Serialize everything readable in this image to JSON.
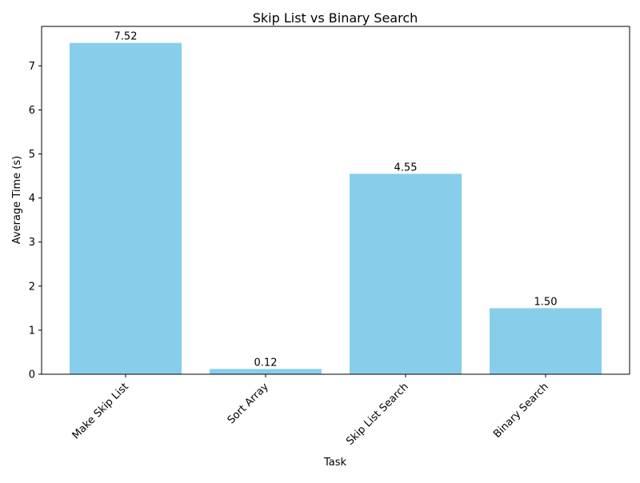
{
  "chart_data": {
    "type": "bar",
    "title": "Skip List vs Binary Search",
    "xlabel": "Task",
    "ylabel": "Average Time (s)",
    "categories": [
      "Make Skip List",
      "Sort Array",
      "Skip List Search",
      "Binary Search"
    ],
    "values": [
      7.52,
      0.12,
      4.55,
      1.5
    ],
    "value_labels": [
      "7.52",
      "0.12",
      "4.55",
      "1.50"
    ],
    "ylim": [
      0,
      7.896
    ],
    "yticks": [
      0,
      1,
      2,
      3,
      4,
      5,
      6,
      7
    ],
    "ytick_labels": [
      "0",
      "1",
      "2",
      "3",
      "4",
      "5",
      "6",
      "7"
    ],
    "bar_color": "#87CEEB",
    "grid": false,
    "xtick_rotation": 45
  }
}
